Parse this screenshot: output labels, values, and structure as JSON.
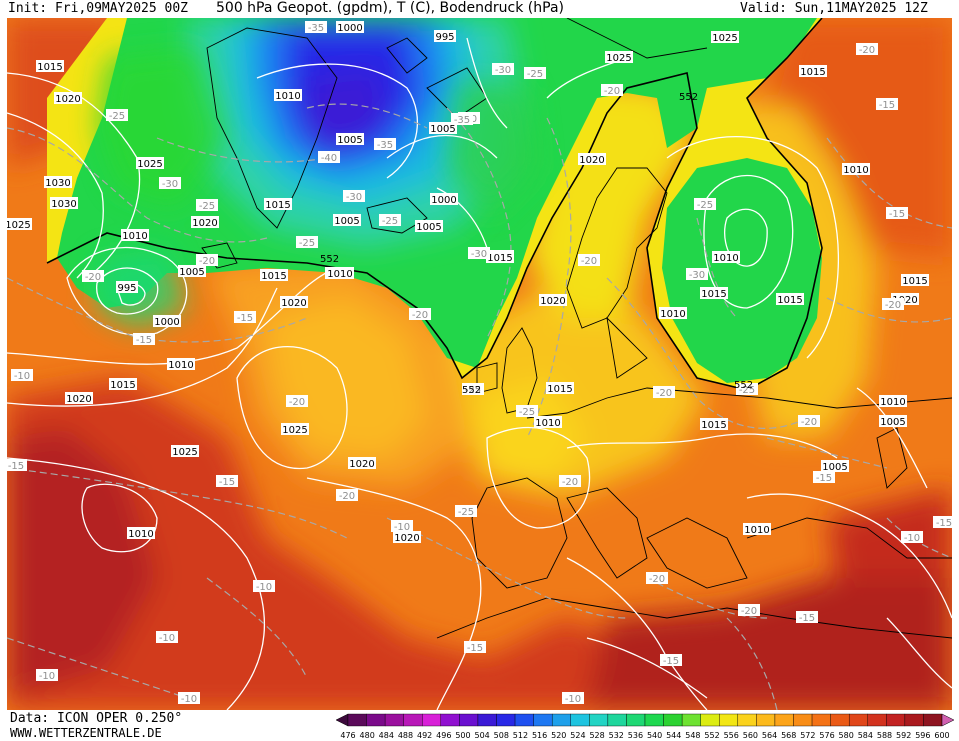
{
  "header": {
    "init": "Init: Fri,09MAY2025 00Z",
    "title": "500 hPa Geopot. (gpdm), T (C), Bodendruck (hPa)",
    "valid": "Valid: Sun,11MAY2025 12Z"
  },
  "footer": {
    "data_source": "Data: ICON OPER 0.250°",
    "website": "WWW.WETTERZENTRALE.DE"
  },
  "colors": {
    "isobar": "#ffffff",
    "isotherm": "#a8a8a8",
    "coastline": "#000000",
    "label_bg": "#ffffff"
  },
  "colorbar": {
    "levels": [
      "476",
      "480",
      "484",
      "488",
      "492",
      "496",
      "500",
      "504",
      "508",
      "512",
      "516",
      "520",
      "524",
      "528",
      "532",
      "536",
      "540",
      "544",
      "548",
      "552",
      "556",
      "560",
      "564",
      "568",
      "572",
      "576",
      "580",
      "584",
      "588",
      "592",
      "596",
      "600"
    ],
    "colors": [
      "#5a0a5a",
      "#7a0a8a",
      "#9a109e",
      "#b818b8",
      "#d820d8",
      "#9010d0",
      "#6a10d0",
      "#3a1ad6",
      "#2828e6",
      "#1e50f0",
      "#1e78f2",
      "#1ea0ea",
      "#1ec4e0",
      "#22d4c4",
      "#1ed69c",
      "#1ed874",
      "#1ed850",
      "#2cd232",
      "#6ee232",
      "#dcec12",
      "#f2e614",
      "#fad21c",
      "#fcba1c",
      "#fca41a",
      "#f88c16",
      "#f47216",
      "#ea5a16",
      "#e0461a",
      "#d2321e",
      "#c22222",
      "#aa1a1e",
      "#8e1420"
    ]
  },
  "map": {
    "pressure_labels": [
      "1015",
      "1020",
      "1025",
      "1030",
      "1010",
      "995",
      "1000",
      "1005",
      "1010",
      "995",
      "1000",
      "1005",
      "1005",
      "1000",
      "1005",
      "1010",
      "1015",
      "1020",
      "1025",
      "1030",
      "1025",
      "1020",
      "1015",
      "1010",
      "1005",
      "1020",
      "1015",
      "1010",
      "1025",
      "1020",
      "1010",
      "1015",
      "1020",
      "1010",
      "1015",
      "1020",
      "1015",
      "1025",
      "1015",
      "1010",
      "1010",
      "1010",
      "1015",
      "1015",
      "1010",
      "1005",
      "1005",
      "1010",
      "1015",
      "1020",
      "1025",
      "1020",
      "1010"
    ],
    "temperature_labels": [
      "-25",
      "-20",
      "-25",
      "-30",
      "-35",
      "-30",
      "-25",
      "-20",
      "-25",
      "-30",
      "-35",
      "-40",
      "-35",
      "-30",
      "-25",
      "-20",
      "-15",
      "-15",
      "-20",
      "-20",
      "-15",
      "-20",
      "-25",
      "-30",
      "-25",
      "-20",
      "-25",
      "-20",
      "-25",
      "-30",
      "-25",
      "-20",
      "-15",
      "-20",
      "-20",
      "-15",
      "-20",
      "-15",
      "-15",
      "-10",
      "-15",
      "-10",
      "-10",
      "-10",
      "-10",
      "-15",
      "-10",
      "-15",
      "-20",
      "-20",
      "-15",
      "-10",
      "-10"
    ],
    "geopotential_labels": [
      "552",
      "552",
      "552",
      "552"
    ]
  }
}
